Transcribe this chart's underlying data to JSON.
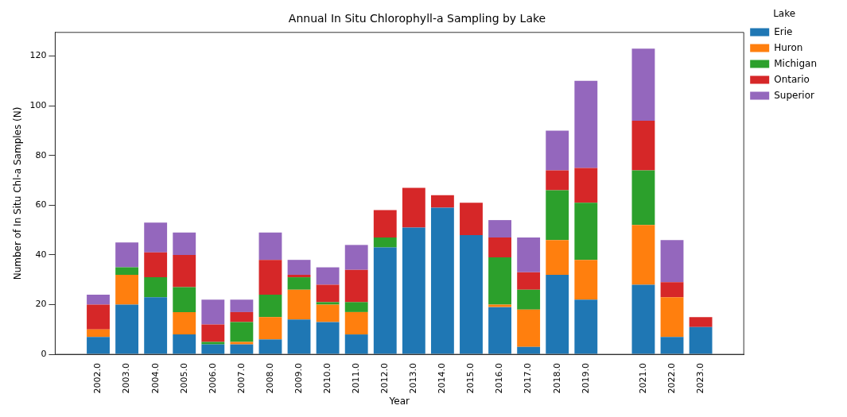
{
  "chart_data": {
    "type": "bar",
    "title": "Annual In Situ Chlorophyll-a Sampling by Lake",
    "xlabel": "Year",
    "ylabel": "Number of In Situ Chl-a Samples (N)",
    "legend_title": "Lake",
    "legend": "top right",
    "stacked": true,
    "grid": false,
    "x": [
      2002,
      2003,
      2004,
      2005,
      2006,
      2007,
      2008,
      2009,
      2010,
      2011,
      2012,
      2013,
      2014,
      2015,
      2016,
      2017,
      2018,
      2019,
      2021,
      2022,
      2023
    ],
    "series": [
      {
        "name": "Erie",
        "color": "#1f77b4",
        "values": [
          7,
          20,
          23,
          8,
          4,
          4,
          6,
          14,
          13,
          8,
          43,
          51,
          59,
          48,
          19,
          3,
          32,
          22,
          28,
          7,
          11
        ]
      },
      {
        "name": "Huron",
        "color": "#ff7f0e",
        "values": [
          3,
          12,
          0,
          9,
          0,
          1,
          9,
          12,
          7,
          9,
          0,
          0,
          0,
          0,
          1,
          15,
          14,
          16,
          24,
          16,
          0
        ]
      },
      {
        "name": "Michigan",
        "color": "#2ca02c",
        "values": [
          0,
          3,
          8,
          10,
          1,
          8,
          9,
          5,
          1,
          4,
          4,
          0,
          0,
          0,
          19,
          8,
          20,
          23,
          22,
          0,
          0
        ]
      },
      {
        "name": "Ontario",
        "color": "#d62728",
        "values": [
          10,
          0,
          10,
          13,
          7,
          4,
          14,
          1,
          7,
          13,
          11,
          16,
          5,
          13,
          8,
          7,
          8,
          14,
          20,
          6,
          4
        ]
      },
      {
        "name": "Superior",
        "color": "#9467bd",
        "values": [
          4,
          10,
          12,
          9,
          10,
          5,
          11,
          6,
          7,
          10,
          0,
          0,
          0,
          0,
          7,
          14,
          16,
          35,
          29,
          17,
          0
        ]
      }
    ],
    "xlim": [
      2000.5,
      2024.5
    ],
    "xticks": [
      {
        "value": 2002,
        "label": "2002.0"
      },
      {
        "value": 2003,
        "label": "2003.0"
      },
      {
        "value": 2004,
        "label": "2004.0"
      },
      {
        "value": 2005,
        "label": "2005.0"
      },
      {
        "value": 2006,
        "label": "2006.0"
      },
      {
        "value": 2007,
        "label": "2007.0"
      },
      {
        "value": 2008,
        "label": "2008.0"
      },
      {
        "value": 2009,
        "label": "2009.0"
      },
      {
        "value": 2010,
        "label": "2010.0"
      },
      {
        "value": 2011,
        "label": "2011.0"
      },
      {
        "value": 2012,
        "label": "2012.0"
      },
      {
        "value": 2013,
        "label": "2013.0"
      },
      {
        "value": 2014,
        "label": "2014.0"
      },
      {
        "value": 2015,
        "label": "2015.0"
      },
      {
        "value": 2016,
        "label": "2016.0"
      },
      {
        "value": 2017,
        "label": "2017.0"
      },
      {
        "value": 2018,
        "label": "2018.0"
      },
      {
        "value": 2019,
        "label": "2019.0"
      },
      {
        "value": 2021,
        "label": "2021.0"
      },
      {
        "value": 2022,
        "label": "2022.0"
      },
      {
        "value": 2023,
        "label": "2023.0"
      }
    ],
    "ylim": [
      0,
      129.5
    ],
    "yticks": [
      0,
      20,
      40,
      60,
      80,
      100,
      120
    ]
  }
}
